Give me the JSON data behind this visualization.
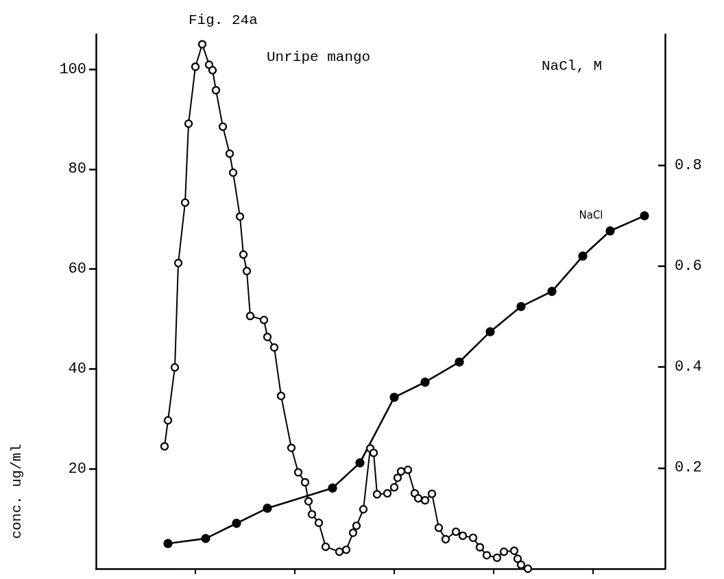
{
  "chart_data": {
    "type": "line",
    "title": "Fig. 24a",
    "subtitle": "Unripe mango",
    "ylabel": "conc. ug/ml",
    "y2label": "NaCl, M",
    "categories": [
      null,
      null,
      null,
      null,
      null,
      null,
      null,
      null,
      null,
      null,
      null,
      null,
      null,
      null,
      null,
      null,
      null,
      null,
      null,
      null,
      null,
      null,
      null,
      null,
      null,
      null,
      null,
      null,
      null,
      null,
      null,
      null,
      null,
      null,
      null,
      null,
      null,
      null,
      null,
      null,
      null,
      null,
      null,
      null,
      null,
      null,
      null,
      null,
      null,
      null,
      null,
      null,
      null,
      null,
      null,
      null,
      null,
      null,
      null,
      null,
      null,
      null,
      null,
      null,
      null,
      null,
      null,
      null,
      null,
      null,
      null,
      null,
      null,
      null,
      null,
      null,
      null,
      null,
      null,
      null,
      null,
      null,
      null,
      null,
      null,
      null,
      null,
      null,
      null,
      null,
      null,
      null,
      null,
      null,
      null,
      null,
      null,
      null,
      null,
      null,
      null,
      null,
      null,
      null,
      null,
      null,
      null,
      null,
      null,
      null,
      null,
      null,
      null,
      null,
      null,
      null,
      null,
      null,
      null,
      null,
      null,
      null,
      null,
      null,
      null,
      null,
      null,
      null,
      null,
      null,
      null,
      null,
      null,
      null,
      null,
      null,
      null,
      null,
      null,
      null,
      null,
      null,
      null,
      null,
      null,
      null,
      null,
      null,
      null,
      null,
      null,
      null,
      null,
      null,
      null,
      null,
      null,
      null,
      null,
      null,
      null,
      null,
      null,
      null,
      null,
      null,
      null
    ],
    "series": [
      {
        "color": "#000000",
        "marker": "circle",
        "values": [
          null,
          null,
          null,
          null,
          null,
          null,
          null,
          null,
          null,
          null,
          null,
          null,
          null,
          null,
          null,
          null,
          null,
          null,
          null,
          null,
          24.5,
          29.7,
          null,
          40.3,
          61.2,
          null,
          73.3,
          89.1,
          null,
          100.5,
          null,
          105,
          null,
          100.9,
          99.8,
          95.8,
          null,
          88.5,
          null,
          83.1,
          79.3,
          null,
          70.5,
          62.9,
          59.6,
          50.6,
          null,
          null,
          null,
          49.8,
          46.4,
          null,
          44.3,
          null,
          34.6,
          null,
          null,
          24.2,
          null,
          19.3,
          null,
          17.3,
          13.5,
          10.9,
          null,
          9.2,
          null,
          4.4,
          null,
          null,
          null,
          3.4,
          null,
          3.8,
          null,
          7.2,
          8.6,
          null,
          11.9,
          null,
          24.1,
          23.2,
          14.9,
          null,
          null,
          15.1,
          null,
          16.3,
          18.2,
          19.5,
          null,
          19.8,
          null,
          15.1,
          14.1,
          null,
          13.7,
          null,
          15.0,
          null,
          8.2,
          null,
          5.9,
          null,
          null,
          7.4,
          null,
          6.6,
          null,
          null,
          6.2,
          null,
          4.3,
          null,
          2.7,
          null,
          null,
          2.2,
          null,
          3.4,
          null,
          null,
          3.6,
          2.0,
          0.8,
          null,
          0,
          null,
          null,
          null,
          null,
          null,
          null,
          null,
          null,
          null,
          null,
          null,
          null,
          null,
          null,
          null,
          null,
          null,
          null,
          null,
          null,
          null,
          null,
          null,
          null,
          null,
          null,
          null,
          null,
          null,
          null,
          null,
          null,
          null,
          null,
          null,
          null,
          null,
          null,
          null,
          null
        ]
      },
      {
        "name": "NaCl",
        "color": "#000000",
        "marker": "circle",
        "axis": "y2",
        "values": [
          null,
          null,
          null,
          null,
          null,
          null,
          null,
          null,
          null,
          null,
          null,
          null,
          null,
          null,
          null,
          null,
          null,
          null,
          null,
          null,
          null,
          0.05,
          null,
          null,
          null,
          null,
          null,
          null,
          null,
          null,
          null,
          null,
          0.06,
          null,
          null,
          null,
          null,
          null,
          null,
          null,
          null,
          0.09,
          null,
          null,
          null,
          null,
          null,
          null,
          null,
          null,
          0.12,
          null,
          null,
          null,
          null,
          null,
          null,
          null,
          null,
          null,
          null,
          null,
          null,
          null,
          null,
          null,
          null,
          null,
          null,
          0.16,
          null,
          null,
          null,
          null,
          null,
          null,
          null,
          0.21,
          null,
          null,
          null,
          null,
          null,
          null,
          null,
          null,
          null,
          0.34,
          null,
          null,
          null,
          null,
          null,
          null,
          null,
          null,
          0.37,
          null,
          null,
          null,
          null,
          null,
          null,
          null,
          null,
          null,
          0.41,
          null,
          null,
          null,
          null,
          null,
          null,
          null,
          null,
          0.47,
          null,
          null,
          null,
          null,
          null,
          null,
          null,
          null,
          0.52,
          null,
          null,
          null,
          null,
          null,
          null,
          null,
          null,
          0.55,
          null,
          null,
          null,
          null,
          null,
          null,
          null,
          null,
          0.62,
          null,
          null,
          null,
          null,
          null,
          null,
          null,
          0.67,
          null,
          null,
          null,
          null,
          null,
          null,
          null,
          null,
          null,
          0.7,
          null,
          null,
          null,
          null,
          null,
          null
        ]
      }
    ],
    "ylim": [
      0,
      107
    ],
    "yticks": [
      20,
      40,
      60,
      80,
      100
    ],
    "y2lim": [
      0,
      1.06
    ],
    "y2ticks": [
      0.2,
      0.4,
      0.6,
      0.8
    ],
    "grid": false,
    "legend": false
  }
}
